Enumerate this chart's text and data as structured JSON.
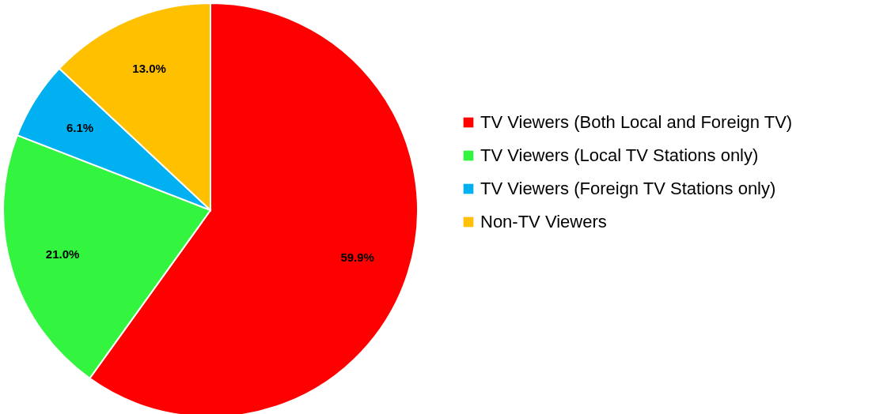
{
  "chart_data": {
    "type": "pie",
    "categories": [
      "TV Viewers (Both Local and Foreign TV)",
      "TV Viewers (Local TV Stations only)",
      "TV Viewers (Foreign TV Stations only)",
      "Non-TV Viewers"
    ],
    "values": [
      59.9,
      21.0,
      6.1,
      13.0
    ],
    "colors": [
      "#ff0000",
      "#33f43f",
      "#00b0f0",
      "#ffc000"
    ],
    "value_labels": [
      "59.9%",
      "21.0%",
      "6.1%",
      "13.0%"
    ],
    "legend": "right"
  }
}
